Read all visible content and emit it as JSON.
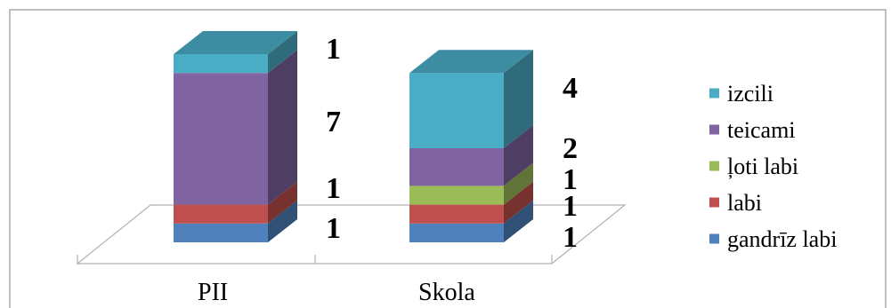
{
  "chart_data": {
    "type": "bar",
    "stacked": true,
    "three_d": true,
    "categories": [
      "PII",
      "Skola"
    ],
    "series": [
      {
        "name": "gandrīz labi",
        "values": [
          1,
          1
        ],
        "color": "#4f81bd"
      },
      {
        "name": "labi",
        "values": [
          1,
          1
        ],
        "color": "#c0504d"
      },
      {
        "name": "ļoti labi",
        "values": [
          0,
          1
        ],
        "color": "#9bbb59"
      },
      {
        "name": "teicami",
        "values": [
          7,
          2
        ],
        "color": "#8064a2"
      },
      {
        "name": "izcili",
        "values": [
          1,
          4
        ],
        "color": "#4bacc6"
      }
    ],
    "data_labels": [
      {
        "category": "PII",
        "series": "izcili",
        "text": "1"
      },
      {
        "category": "PII",
        "series": "teicami",
        "text": "7"
      },
      {
        "category": "PII",
        "series": "labi",
        "text": "1"
      },
      {
        "category": "PII",
        "series": "gandrīz labi",
        "text": "1"
      },
      {
        "category": "Skola",
        "series": "izcili",
        "text": "4"
      },
      {
        "category": "Skola",
        "series": "teicami",
        "text": "2"
      },
      {
        "category": "Skola",
        "series": "ļoti labi",
        "text": "1"
      },
      {
        "category": "Skola",
        "series": "labi",
        "text": "1"
      },
      {
        "category": "Skola",
        "series": "gandrīz labi",
        "text": "1"
      }
    ],
    "legend_order": [
      "izcili",
      "teicami",
      "ļoti labi",
      "labi",
      "gandrīz labi"
    ],
    "legend_position": "right",
    "ylim": [
      0,
      10
    ],
    "grid": false
  }
}
